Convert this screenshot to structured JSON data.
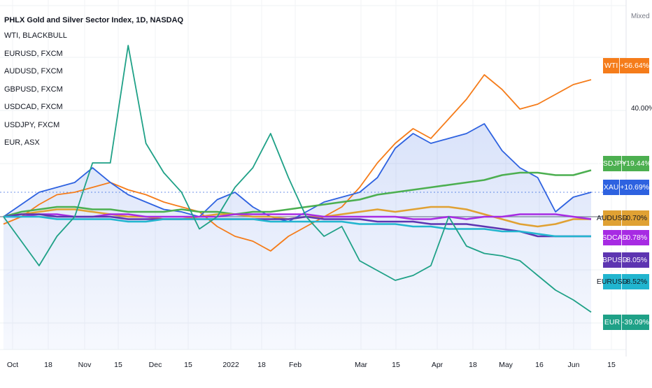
{
  "chart_data": {
    "type": "line",
    "title": "PHLX Gold and Silver Sector Index, 1D, NASDAQ",
    "scale_mode": "Mixed",
    "y_axis_labels": [
      "40.00%"
    ],
    "x_tick_labels": [
      "Oct",
      "18",
      "Nov",
      "15",
      "Dec",
      "15",
      "2022",
      "18",
      "Feb",
      "Mar",
      "15",
      "Apr",
      "18",
      "May",
      "16",
      "Jun",
      "15"
    ],
    "legend": [
      "WTI, BLACKBULL",
      "EURUSD, FXCM",
      "AUDUSD, FXCM",
      "GBPUSD, FXCM",
      "USDCAD, FXCM",
      "USDJPY, FXCM",
      "EUR, ASX"
    ],
    "series": [
      {
        "name": "WTI",
        "color": "#f57c1a",
        "last_value": "+56.64%",
        "values": [
          -3,
          0,
          5,
          9,
          10,
          12,
          14,
          11,
          9,
          6,
          4,
          2,
          -4,
          -8,
          -10,
          -14,
          -8,
          -4,
          0,
          4,
          12,
          22,
          30,
          36,
          32,
          40,
          48,
          58,
          52,
          44,
          46,
          50,
          54,
          56
        ]
      },
      {
        "name": "XAU",
        "color": "#2e62e0",
        "last_value": "+10.69%",
        "values": [
          0,
          5,
          10,
          12,
          14,
          20,
          14,
          9,
          6,
          3,
          2,
          0,
          7,
          10,
          4,
          0,
          -2,
          2,
          6,
          8,
          10,
          16,
          28,
          34,
          30,
          32,
          34,
          38,
          27,
          20,
          16,
          2,
          8,
          10
        ]
      },
      {
        "name": "USDJPY",
        "color": "#4caf50",
        "last_value": "+19.44%",
        "values": [
          0,
          2,
          3,
          4,
          4,
          3,
          3,
          2,
          2,
          2,
          3,
          2,
          2,
          1,
          2,
          2,
          3,
          4,
          5,
          6,
          7,
          9,
          10,
          11,
          12,
          13,
          14,
          15,
          17,
          18,
          18,
          17,
          17,
          19
        ]
      },
      {
        "name": "AUDUSD",
        "color": "#e0a133",
        "last_value": "-0.70%",
        "values": [
          0,
          1,
          2,
          3,
          3,
          2,
          1,
          0,
          0,
          -1,
          -1,
          0,
          1,
          1,
          0,
          0,
          -1,
          0,
          0,
          1,
          2,
          3,
          2,
          3,
          4,
          4,
          3,
          1,
          -1,
          -3,
          -4,
          -3,
          -1,
          -1
        ]
      },
      {
        "name": "USDCAD",
        "color": "#a72be3",
        "last_value": "-0.78%",
        "values": [
          0,
          0,
          1,
          1,
          0,
          0,
          1,
          1,
          0,
          0,
          0,
          0,
          0,
          1,
          1,
          1,
          1,
          1,
          0,
          0,
          0,
          0,
          0,
          -1,
          -1,
          0,
          -1,
          0,
          0,
          1,
          1,
          1,
          0,
          -1
        ]
      },
      {
        "name": "GBPUSD",
        "color": "#5d35b1",
        "last_value": "-8.05%",
        "values": [
          0,
          1,
          1,
          0,
          0,
          0,
          0,
          -1,
          -1,
          -1,
          -1,
          -1,
          -1,
          -1,
          -1,
          -1,
          -1,
          0,
          -1,
          -1,
          -1,
          -2,
          -2,
          -2,
          -3,
          -3,
          -3,
          -4,
          -5,
          -6,
          -8,
          -8,
          -8,
          -8
        ]
      },
      {
        "name": "EURUSD",
        "color": "#21b5cf",
        "last_value": "-8.52%",
        "values": [
          0,
          0,
          0,
          -1,
          -1,
          -1,
          -1,
          -2,
          -2,
          -1,
          -1,
          -1,
          -1,
          -1,
          -1,
          -2,
          -2,
          -2,
          -2,
          -2,
          -3,
          -3,
          -3,
          -4,
          -4,
          -5,
          -5,
          -5,
          -6,
          -6,
          -7,
          -8,
          -8,
          -8
        ]
      },
      {
        "name": "EUR",
        "color": "#1fa187",
        "last_value": "-39.09%",
        "values": [
          0,
          -10,
          -20,
          -8,
          0,
          22,
          22,
          70,
          30,
          18,
          10,
          -5,
          0,
          12,
          20,
          34,
          16,
          0,
          -8,
          -4,
          -18,
          -22,
          -26,
          -24,
          -20,
          0,
          -12,
          -15,
          -16,
          -18,
          -24,
          -30,
          -34,
          -39
        ]
      }
    ]
  }
}
